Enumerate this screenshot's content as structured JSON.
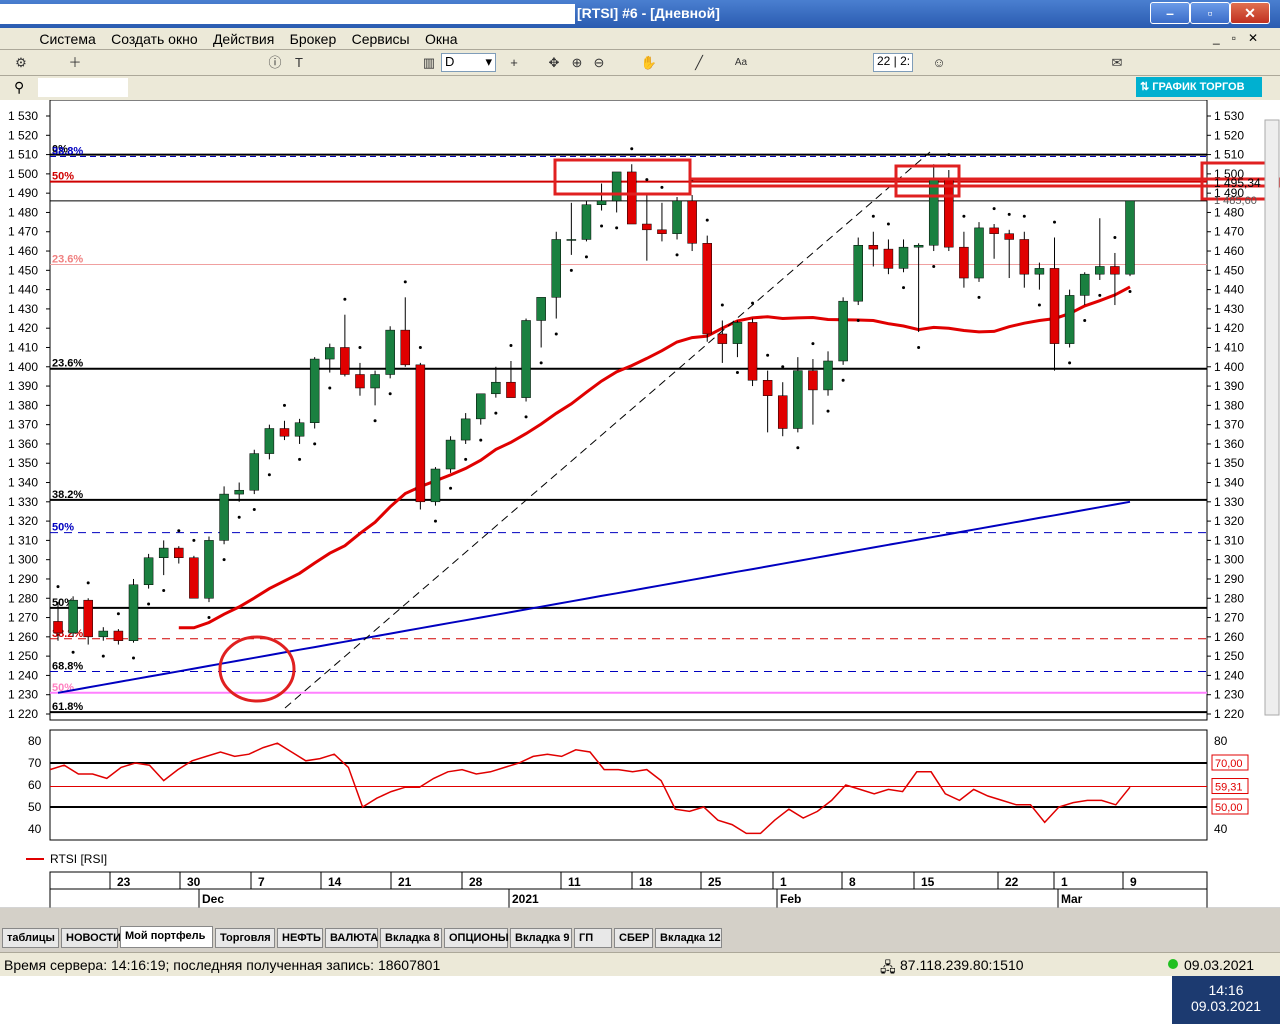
{
  "window": {
    "title": "[RTSI] #6 - [Дневной]"
  },
  "menu": [
    "Система",
    "Создать окно",
    "Действия",
    "Брокер",
    "Сервисы",
    "Окна"
  ],
  "toolbar": {
    "period": "D",
    "zoom_field": "22 | 2:",
    "trade_graph": "ГРАФИК ТОРГОВ"
  },
  "chart_data": {
    "type": "candlestick",
    "y_ticks": [
      "1 530",
      "1 520",
      "1 510",
      "1 500",
      "1 490",
      "1 480",
      "1 470",
      "1 460",
      "1 450",
      "1 440",
      "1 430",
      "1 420",
      "1 410",
      "1 400",
      "1 390",
      "1 380",
      "1 370",
      "1 360",
      "1 350",
      "1 340",
      "1 330",
      "1 320",
      "1 310",
      "1 300",
      "1 290",
      "1 280",
      "1 270",
      "1 260",
      "1 250",
      "1 240",
      "1 230",
      "1 220"
    ],
    "ylim": [
      1220,
      1530
    ],
    "price_label": "1 495,34",
    "price_label2": "1 485,60",
    "fib_labels": [
      {
        "text": "0%",
        "y": 1510,
        "color": "#000"
      },
      {
        "text": "38.8%",
        "y": 1509,
        "color": "#0000c0"
      },
      {
        "text": "50%",
        "y": 1496,
        "color": "#d00000"
      },
      {
        "text": "23.6%",
        "y": 1453,
        "color": "#f08080"
      },
      {
        "text": "23.6%",
        "y": 1399,
        "color": "#000"
      },
      {
        "text": "38.2%",
        "y": 1331,
        "color": "#000"
      },
      {
        "text": "50%",
        "y": 1314,
        "color": "#0000c0"
      },
      {
        "text": "50%",
        "y": 1275,
        "color": "#000"
      },
      {
        "text": "38.2%",
        "y": 1259,
        "color": "#d00000"
      },
      {
        "text": "68.8%",
        "y": 1242,
        "color": "#000"
      },
      {
        "text": "50%",
        "y": 1231,
        "color": "#ff80c0"
      },
      {
        "text": "61.8%",
        "y": 1221,
        "color": "#000"
      }
    ],
    "candles": [
      [
        1268,
        1278,
        1258,
        1262
      ],
      [
        1262,
        1281,
        1260,
        1279
      ],
      [
        1279,
        1280,
        1256,
        1260
      ],
      [
        1260,
        1265,
        1258,
        1263
      ],
      [
        1263,
        1264,
        1256,
        1258
      ],
      [
        1258,
        1290,
        1257,
        1287
      ],
      [
        1287,
        1303,
        1285,
        1301
      ],
      [
        1301,
        1310,
        1292,
        1306
      ],
      [
        1306,
        1307,
        1298,
        1301
      ],
      [
        1301,
        1302,
        1280,
        1280
      ],
      [
        1280,
        1312,
        1278,
        1310
      ],
      [
        1310,
        1338,
        1308,
        1334
      ],
      [
        1334,
        1340,
        1330,
        1336
      ],
      [
        1336,
        1357,
        1334,
        1355
      ],
      [
        1355,
        1370,
        1352,
        1368
      ],
      [
        1368,
        1372,
        1362,
        1364
      ],
      [
        1364,
        1373,
        1360,
        1371
      ],
      [
        1371,
        1405,
        1368,
        1404
      ],
      [
        1404,
        1412,
        1397,
        1410
      ],
      [
        1410,
        1427,
        1395,
        1396
      ],
      [
        1396,
        1402,
        1385,
        1389
      ],
      [
        1389,
        1398,
        1380,
        1396
      ],
      [
        1396,
        1421,
        1394,
        1419
      ],
      [
        1419,
        1436,
        1400,
        1401
      ],
      [
        1401,
        1402,
        1326,
        1330
      ],
      [
        1330,
        1348,
        1328,
        1347
      ],
      [
        1347,
        1364,
        1345,
        1362
      ],
      [
        1362,
        1376,
        1360,
        1373
      ],
      [
        1373,
        1384,
        1370,
        1386
      ],
      [
        1386,
        1400,
        1384,
        1392
      ],
      [
        1392,
        1403,
        1385,
        1384
      ],
      [
        1384,
        1425,
        1382,
        1424
      ],
      [
        1424,
        1434,
        1410,
        1436
      ],
      [
        1436,
        1470,
        1425,
        1466
      ],
      [
        1466,
        1485,
        1458,
        1466
      ],
      [
        1466,
        1486,
        1465,
        1484
      ],
      [
        1484,
        1495,
        1481,
        1486
      ],
      [
        1486,
        1500,
        1480,
        1501
      ],
      [
        1501,
        1505,
        1476,
        1474
      ],
      [
        1474,
        1489,
        1455,
        1471
      ],
      [
        1471,
        1485,
        1465,
        1469
      ],
      [
        1469,
        1488,
        1466,
        1486
      ],
      [
        1486,
        1489,
        1460,
        1464
      ],
      [
        1464,
        1468,
        1413,
        1417
      ],
      [
        1417,
        1424,
        1402,
        1412
      ],
      [
        1412,
        1424,
        1405,
        1423
      ],
      [
        1423,
        1425,
        1390,
        1393
      ],
      [
        1393,
        1398,
        1366,
        1385
      ],
      [
        1385,
        1392,
        1364,
        1368
      ],
      [
        1368,
        1405,
        1366,
        1398
      ],
      [
        1398,
        1404,
        1370,
        1388
      ],
      [
        1388,
        1408,
        1385,
        1403
      ],
      [
        1403,
        1436,
        1401,
        1434
      ],
      [
        1434,
        1467,
        1432,
        1463
      ],
      [
        1463,
        1470,
        1452,
        1461
      ],
      [
        1461,
        1466,
        1448,
        1451
      ],
      [
        1451,
        1466,
        1449,
        1462
      ],
      [
        1462,
        1464,
        1418,
        1463
      ],
      [
        1463,
        1505,
        1460,
        1497
      ],
      [
        1497,
        1502,
        1460,
        1462
      ],
      [
        1462,
        1470,
        1441,
        1446
      ],
      [
        1446,
        1475,
        1444,
        1472
      ],
      [
        1472,
        1474,
        1456,
        1469
      ],
      [
        1469,
        1471,
        1446,
        1466
      ],
      [
        1466,
        1470,
        1441,
        1448
      ],
      [
        1448,
        1454,
        1440,
        1451
      ],
      [
        1451,
        1467,
        1398,
        1412
      ],
      [
        1412,
        1440,
        1410,
        1437
      ],
      [
        1437,
        1449,
        1432,
        1448
      ],
      [
        1448,
        1477,
        1445,
        1452
      ],
      [
        1452,
        1459,
        1432,
        1448
      ],
      [
        1448,
        1486,
        1447,
        1486
      ]
    ],
    "rsi": {
      "name": "RTSI [RSI]",
      "y_ticks": [
        "80",
        "70",
        "60",
        "50",
        "40"
      ],
      "levels": [
        "70,00",
        "59,31",
        "50,00"
      ],
      "values": [
        67,
        69,
        65,
        65,
        63,
        68,
        70,
        69,
        62,
        67,
        71,
        73,
        75,
        73,
        74,
        77,
        79,
        75,
        71,
        72,
        74,
        68,
        50,
        54,
        57,
        59,
        59,
        63,
        66,
        67,
        65,
        66,
        68,
        70,
        73,
        74,
        73,
        76,
        75,
        67,
        67,
        66,
        67,
        62,
        49,
        48,
        50,
        44,
        42,
        38,
        38,
        44,
        49,
        45,
        48,
        53,
        60,
        58,
        56,
        58,
        57,
        66,
        66,
        56,
        53,
        58,
        55,
        53,
        51,
        51,
        43,
        50,
        52,
        53,
        53,
        51,
        59
      ]
    },
    "x_ticks": [
      "23",
      "30",
      "7",
      "14",
      "21",
      "28",
      "11",
      "18",
      "25",
      "1",
      "8",
      "15",
      "22",
      "1",
      "9"
    ],
    "x_months": [
      "Dec",
      "2021",
      "Feb",
      "Mar"
    ]
  },
  "tabs": [
    "таблицы",
    "НОВОСТИ",
    "Мой портфель",
    "Торговля",
    "НЕФТЬ",
    "ВАЛЮТА",
    "Вкладка 8",
    "ОПЦИОНЫ",
    "Вкладка 9",
    "ГП",
    "СБЕР",
    "Вкладка 12"
  ],
  "status": {
    "server": "Время сервера: 14:16:19; последняя полученная запись: 18607801",
    "ip": "87.118.239.80:1510",
    "date": "09.03.2021"
  },
  "taskbar": {
    "time": "14:16",
    "date": "09.03.2021"
  }
}
